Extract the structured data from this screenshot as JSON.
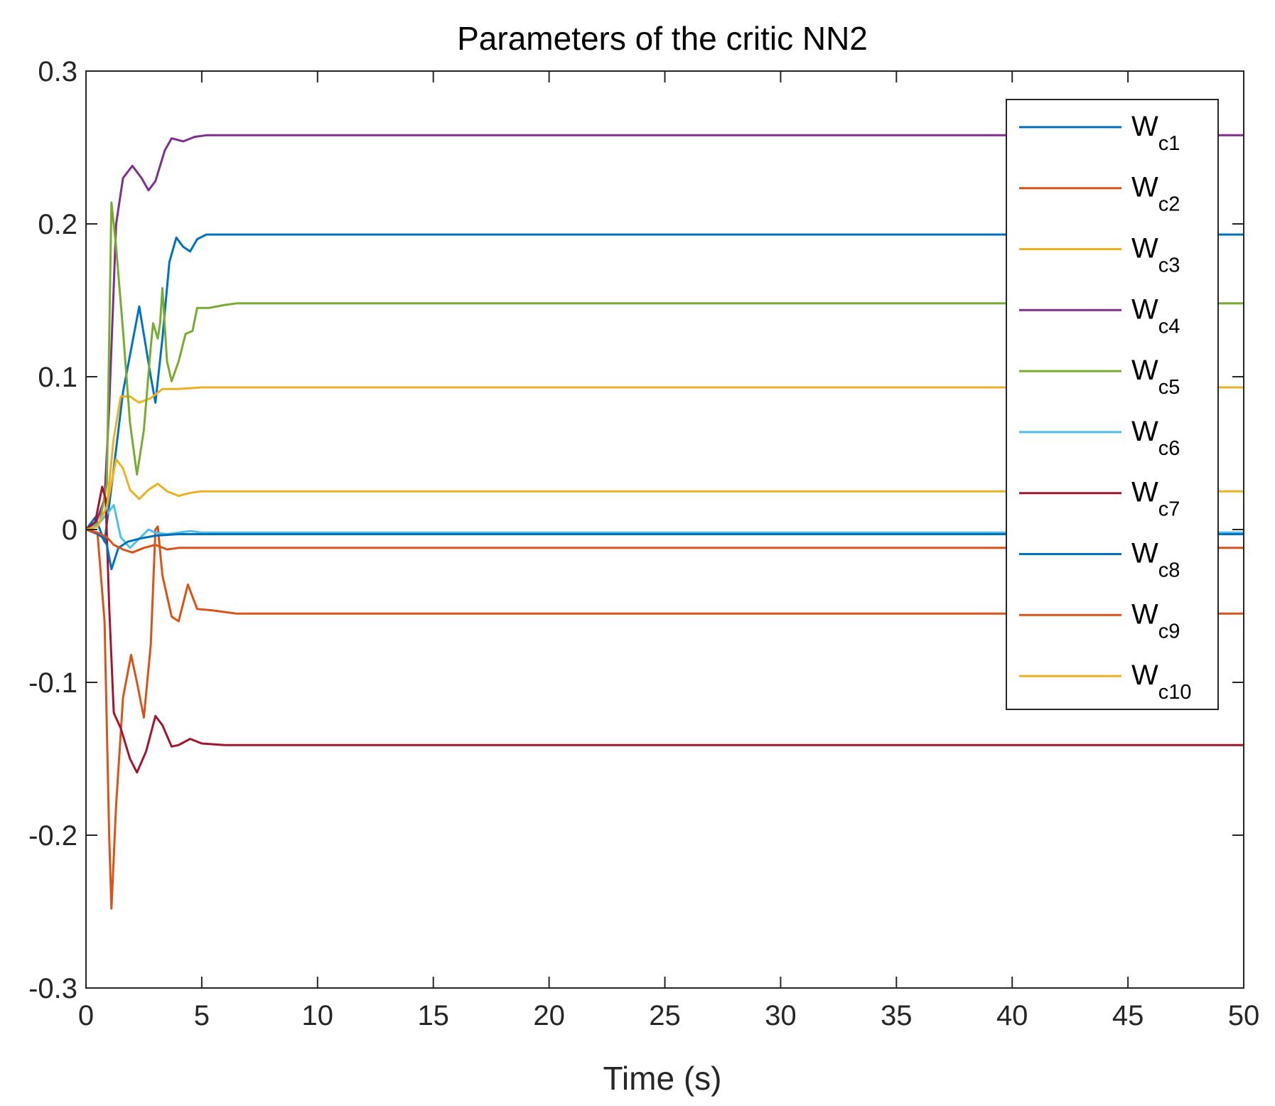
{
  "chart_data": {
    "type": "line",
    "title": "Parameters of the critic NN2",
    "xlabel": "Time (s)",
    "ylabel": "",
    "xlim": [
      0,
      50
    ],
    "ylim": [
      -0.3,
      0.3
    ],
    "xticks": [
      0,
      5,
      10,
      15,
      20,
      25,
      30,
      35,
      40,
      45,
      50
    ],
    "yticks": [
      -0.3,
      -0.2,
      -0.1,
      0,
      0.1,
      0.2,
      0.3
    ],
    "xtick_labels": [
      "0",
      "5",
      "10",
      "15",
      "20",
      "25",
      "30",
      "35",
      "40",
      "45",
      "50"
    ],
    "ytick_labels": [
      "-0.3",
      "-0.2",
      "-0.1",
      "0",
      "0.1",
      "0.2",
      "0.3"
    ],
    "grid": false,
    "legend_position": "top-right",
    "series": [
      {
        "name": "W_c1",
        "main": "W",
        "sub": "c1",
        "color": "#0072BD",
        "points": [
          [
            0,
            0
          ],
          [
            0.4,
            0.008
          ],
          [
            0.8,
            -0.008
          ],
          [
            1.2,
            0.04
          ],
          [
            1.6,
            0.09
          ],
          [
            2.3,
            0.146
          ],
          [
            2.8,
            0.1
          ],
          [
            3.0,
            0.083
          ],
          [
            3.3,
            0.125
          ],
          [
            3.6,
            0.175
          ],
          [
            3.9,
            0.191
          ],
          [
            4.2,
            0.185
          ],
          [
            4.5,
            0.182
          ],
          [
            4.8,
            0.19
          ],
          [
            5.2,
            0.193
          ],
          [
            50,
            0.193
          ]
        ]
      },
      {
        "name": "W_c2",
        "main": "W",
        "sub": "c2",
        "color": "#D95319",
        "points": [
          [
            0,
            0
          ],
          [
            0.5,
            -0.003
          ],
          [
            0.8,
            -0.06
          ],
          [
            1.0,
            -0.2
          ],
          [
            1.1,
            -0.248
          ],
          [
            1.3,
            -0.18
          ],
          [
            1.6,
            -0.11
          ],
          [
            1.95,
            -0.082
          ],
          [
            2.2,
            -0.1
          ],
          [
            2.5,
            -0.123
          ],
          [
            2.8,
            -0.075
          ],
          [
            3.0,
            0.0
          ],
          [
            3.1,
            0.002
          ],
          [
            3.3,
            -0.03
          ],
          [
            3.7,
            -0.057
          ],
          [
            4.0,
            -0.06
          ],
          [
            4.4,
            -0.036
          ],
          [
            4.8,
            -0.052
          ],
          [
            5.5,
            -0.053
          ],
          [
            6.5,
            -0.055
          ],
          [
            50,
            -0.055
          ]
        ]
      },
      {
        "name": "W_c3",
        "main": "W",
        "sub": "c3",
        "color": "#EDB120",
        "points": [
          [
            0,
            0
          ],
          [
            0.5,
            0.002
          ],
          [
            0.9,
            0.015
          ],
          [
            1.2,
            0.06
          ],
          [
            1.5,
            0.087
          ],
          [
            1.9,
            0.087
          ],
          [
            2.3,
            0.083
          ],
          [
            2.8,
            0.086
          ],
          [
            3.3,
            0.092
          ],
          [
            4.0,
            0.092
          ],
          [
            5.0,
            0.093
          ],
          [
            50,
            0.093
          ]
        ]
      },
      {
        "name": "W_c4",
        "main": "W",
        "sub": "c4",
        "color": "#7E2F8E",
        "points": [
          [
            0,
            0
          ],
          [
            0.4,
            0.003
          ],
          [
            0.8,
            0.02
          ],
          [
            1.0,
            0.08
          ],
          [
            1.3,
            0.2
          ],
          [
            1.6,
            0.23
          ],
          [
            2.0,
            0.238
          ],
          [
            2.4,
            0.23
          ],
          [
            2.7,
            0.222
          ],
          [
            3.0,
            0.228
          ],
          [
            3.4,
            0.248
          ],
          [
            3.7,
            0.256
          ],
          [
            4.2,
            0.254
          ],
          [
            4.7,
            0.257
          ],
          [
            5.2,
            0.258
          ],
          [
            50,
            0.258
          ]
        ]
      },
      {
        "name": "W_c5",
        "main": "W",
        "sub": "c5",
        "color": "#77AC30",
        "points": [
          [
            0,
            0
          ],
          [
            0.6,
            0.005
          ],
          [
            0.9,
            0.03
          ],
          [
            1.1,
            0.214
          ],
          [
            1.3,
            0.185
          ],
          [
            1.6,
            0.13
          ],
          [
            1.9,
            0.07
          ],
          [
            2.2,
            0.036
          ],
          [
            2.5,
            0.065
          ],
          [
            2.8,
            0.12
          ],
          [
            2.9,
            0.135
          ],
          [
            3.1,
            0.125
          ],
          [
            3.2,
            0.135
          ],
          [
            3.3,
            0.158
          ],
          [
            3.5,
            0.11
          ],
          [
            3.7,
            0.097
          ],
          [
            4.0,
            0.11
          ],
          [
            4.3,
            0.128
          ],
          [
            4.6,
            0.13
          ],
          [
            4.8,
            0.145
          ],
          [
            5.3,
            0.145
          ],
          [
            6.0,
            0.147
          ],
          [
            6.5,
            0.148
          ],
          [
            50,
            0.148
          ]
        ]
      },
      {
        "name": "W_c6",
        "main": "W",
        "sub": "c6",
        "color": "#4DBEEE",
        "points": [
          [
            0,
            0
          ],
          [
            0.5,
            0.003
          ],
          [
            0.9,
            0.01
          ],
          [
            1.2,
            0.016
          ],
          [
            1.5,
            -0.005
          ],
          [
            1.9,
            -0.012
          ],
          [
            2.3,
            -0.006
          ],
          [
            2.7,
            0.0
          ],
          [
            3.0,
            -0.002
          ],
          [
            3.5,
            -0.003
          ],
          [
            4.0,
            -0.002
          ],
          [
            4.5,
            -0.001
          ],
          [
            5.0,
            -0.002
          ],
          [
            50,
            -0.002
          ]
        ]
      },
      {
        "name": "W_c7",
        "main": "W",
        "sub": "c7",
        "color": "#A2142F",
        "points": [
          [
            0,
            0
          ],
          [
            0.4,
            0.005
          ],
          [
            0.7,
            0.028
          ],
          [
            0.85,
            0.02
          ],
          [
            1.0,
            -0.05
          ],
          [
            1.2,
            -0.12
          ],
          [
            1.5,
            -0.13
          ],
          [
            1.9,
            -0.15
          ],
          [
            2.2,
            -0.159
          ],
          [
            2.6,
            -0.145
          ],
          [
            3.0,
            -0.122
          ],
          [
            3.3,
            -0.128
          ],
          [
            3.7,
            -0.142
          ],
          [
            4.0,
            -0.141
          ],
          [
            4.5,
            -0.137
          ],
          [
            5.0,
            -0.14
          ],
          [
            6.0,
            -0.141
          ],
          [
            50,
            -0.141
          ]
        ]
      },
      {
        "name": "W_c8",
        "main": "W",
        "sub": "c8",
        "color": "#0072BD",
        "points": [
          [
            0,
            0
          ],
          [
            0.4,
            -0.002
          ],
          [
            0.7,
            -0.005
          ],
          [
            0.9,
            -0.01
          ],
          [
            1.1,
            -0.026
          ],
          [
            1.4,
            -0.012
          ],
          [
            1.8,
            -0.008
          ],
          [
            2.3,
            -0.006
          ],
          [
            3.0,
            -0.004
          ],
          [
            4.0,
            -0.003
          ],
          [
            5.0,
            -0.003
          ],
          [
            50,
            -0.003
          ]
        ]
      },
      {
        "name": "W_c9",
        "main": "W",
        "sub": "c9",
        "color": "#D95319",
        "points": [
          [
            0,
            0
          ],
          [
            0.5,
            -0.002
          ],
          [
            0.9,
            -0.005
          ],
          [
            1.2,
            -0.01
          ],
          [
            1.6,
            -0.013
          ],
          [
            2.0,
            -0.015
          ],
          [
            2.5,
            -0.012
          ],
          [
            3.0,
            -0.01
          ],
          [
            3.5,
            -0.013
          ],
          [
            4.0,
            -0.012
          ],
          [
            5.0,
            -0.012
          ],
          [
            50,
            -0.012
          ]
        ]
      },
      {
        "name": "W_c10",
        "main": "W",
        "sub": "c10",
        "color": "#EDB120",
        "points": [
          [
            0,
            0
          ],
          [
            0.5,
            0.002
          ],
          [
            0.9,
            0.015
          ],
          [
            1.3,
            0.046
          ],
          [
            1.6,
            0.04
          ],
          [
            1.9,
            0.026
          ],
          [
            2.3,
            0.02
          ],
          [
            2.7,
            0.026
          ],
          [
            3.1,
            0.03
          ],
          [
            3.5,
            0.025
          ],
          [
            4.0,
            0.022
          ],
          [
            4.5,
            0.024
          ],
          [
            5.0,
            0.025
          ],
          [
            50,
            0.025
          ]
        ]
      }
    ]
  }
}
